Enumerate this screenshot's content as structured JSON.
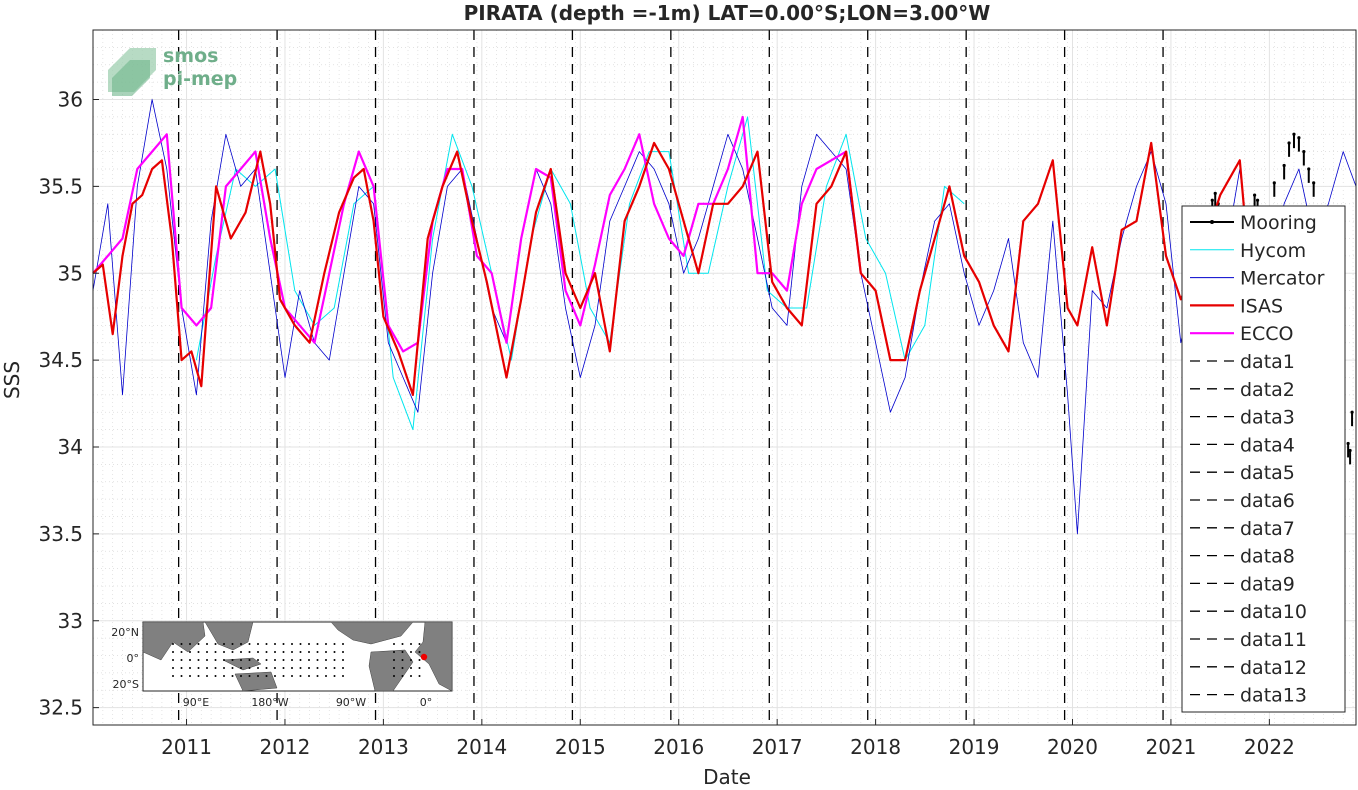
{
  "chart_data": {
    "type": "line",
    "title": "PIRATA (depth =-1m) LAT=0.00°S;LON=3.00°W",
    "xlabel": "Date",
    "ylabel": "SSS",
    "xlim": [
      2010.05,
      2022.88
    ],
    "ylim": [
      32.4,
      36.4
    ],
    "xticks": [
      2011,
      2012,
      2013,
      2014,
      2015,
      2016,
      2017,
      2018,
      2019,
      2020,
      2021,
      2022
    ],
    "xtick_labels": [
      "2011",
      "2012",
      "2013",
      "2014",
      "2015",
      "2016",
      "2017",
      "2018",
      "2019",
      "2020",
      "2021",
      "2022"
    ],
    "yticks": [
      32.5,
      33,
      33.5,
      34,
      34.5,
      35,
      35.5,
      36
    ],
    "ytick_labels": [
      "32.5",
      "33",
      "33.5",
      "34",
      "34.5",
      "35",
      "35.5",
      "36"
    ],
    "grid": true,
    "legend_position": "right",
    "vertical_lines": [
      2010.92,
      2011.92,
      2012.92,
      2013.92,
      2014.92,
      2015.92,
      2016.92,
      2017.92,
      2018.92,
      2019.92,
      2020.92
    ],
    "series": [
      {
        "name": "Mooring",
        "color": "#000000",
        "style": "solid-dots",
        "x": [
          2021.42,
          2021.45,
          2021.48,
          2021.85,
          2021.88,
          2022.05,
          2022.1,
          2022.15,
          2022.2,
          2022.25,
          2022.3,
          2022.35,
          2022.4,
          2022.45,
          2022.8,
          2022.82,
          2022.84
        ],
        "y": [
          35.42,
          35.46,
          35.4,
          35.45,
          35.42,
          35.52,
          35.35,
          35.62,
          35.75,
          35.8,
          35.78,
          35.7,
          35.6,
          35.52,
          34.02,
          33.98,
          34.2
        ]
      },
      {
        "name": "Hycom",
        "color": "#00e5ee",
        "style": "solid",
        "x": [
          2011.1,
          2011.3,
          2011.5,
          2011.7,
          2011.9,
          2012.1,
          2012.3,
          2012.5,
          2012.7,
          2012.9,
          2013.1,
          2013.3,
          2013.5,
          2013.7,
          2013.9,
          2014.1,
          2014.3,
          2014.5,
          2014.7,
          2014.9,
          2015.1,
          2015.3,
          2015.5,
          2015.7,
          2015.9,
          2016.1,
          2016.3,
          2016.5,
          2016.7,
          2016.9,
          2017.1,
          2017.3,
          2017.5,
          2017.7,
          2017.9,
          2018.1,
          2018.3,
          2018.5,
          2018.7,
          2018.9
        ],
        "y": [
          34.5,
          35.1,
          35.6,
          35.5,
          35.6,
          34.9,
          34.7,
          34.8,
          35.4,
          35.5,
          34.4,
          34.1,
          35.2,
          35.8,
          35.5,
          35.0,
          34.5,
          35.2,
          35.6,
          35.4,
          34.8,
          34.6,
          35.4,
          35.7,
          35.7,
          35.0,
          35.0,
          35.5,
          35.9,
          34.9,
          34.8,
          34.8,
          35.5,
          35.8,
          35.2,
          35.0,
          34.5,
          34.7,
          35.5,
          35.4
        ]
      },
      {
        "name": "Mercator",
        "color": "#0000cc",
        "style": "solid",
        "x": [
          2010.05,
          2010.2,
          2010.35,
          2010.5,
          2010.65,
          2010.8,
          2010.95,
          2011.1,
          2011.25,
          2011.4,
          2011.55,
          2011.7,
          2011.85,
          2012.0,
          2012.15,
          2012.3,
          2012.45,
          2012.6,
          2012.75,
          2012.9,
          2013.05,
          2013.2,
          2013.35,
          2013.5,
          2013.65,
          2013.8,
          2013.95,
          2014.1,
          2014.25,
          2014.4,
          2014.55,
          2014.7,
          2014.85,
          2015.0,
          2015.15,
          2015.3,
          2015.45,
          2015.6,
          2015.75,
          2015.9,
          2016.05,
          2016.2,
          2016.35,
          2016.5,
          2016.65,
          2016.8,
          2016.95,
          2017.1,
          2017.25,
          2017.4,
          2017.55,
          2017.7,
          2017.85,
          2018.0,
          2018.15,
          2018.3,
          2018.45,
          2018.6,
          2018.75,
          2018.9,
          2019.05,
          2019.2,
          2019.35,
          2019.5,
          2019.65,
          2019.8,
          2019.95,
          2020.05,
          2020.2,
          2020.35,
          2020.5,
          2020.65,
          2020.8,
          2020.95,
          2021.1,
          2021.25,
          2021.4,
          2021.55,
          2021.7,
          2021.85,
          2022.0,
          2022.15,
          2022.3,
          2022.45,
          2022.6,
          2022.75,
          2022.88
        ],
        "y": [
          34.9,
          35.4,
          34.3,
          35.5,
          36.0,
          35.6,
          34.8,
          34.3,
          35.3,
          35.8,
          35.5,
          35.6,
          35.0,
          34.4,
          34.9,
          34.6,
          34.5,
          35.0,
          35.5,
          35.4,
          34.6,
          34.4,
          34.2,
          35.0,
          35.5,
          35.6,
          35.2,
          34.8,
          34.6,
          35.2,
          35.6,
          35.4,
          34.8,
          34.4,
          34.7,
          35.3,
          35.5,
          35.7,
          35.6,
          35.4,
          35.0,
          35.2,
          35.5,
          35.8,
          35.6,
          35.2,
          34.8,
          34.7,
          35.5,
          35.8,
          35.7,
          35.6,
          35.0,
          34.6,
          34.2,
          34.4,
          34.9,
          35.3,
          35.4,
          35.0,
          34.7,
          34.9,
          35.2,
          34.6,
          34.4,
          35.3,
          34.3,
          33.5,
          34.9,
          34.8,
          35.2,
          35.5,
          35.7,
          35.4,
          34.6,
          35.0,
          35.3,
          35.1,
          35.6,
          34.8,
          35.0,
          35.4,
          35.6,
          35.2,
          35.4,
          35.7,
          35.5
        ]
      },
      {
        "name": "ISAS",
        "color": "#e60000",
        "style": "solid",
        "x": [
          2010.05,
          2010.15,
          2010.25,
          2010.35,
          2010.45,
          2010.55,
          2010.65,
          2010.75,
          2010.85,
          2010.95,
          2011.05,
          2011.15,
          2011.3,
          2011.45,
          2011.6,
          2011.75,
          2011.85,
          2011.95,
          2012.1,
          2012.25,
          2012.4,
          2012.55,
          2012.7,
          2012.8,
          2012.9,
          2013.0,
          2013.15,
          2013.3,
          2013.45,
          2013.6,
          2013.75,
          2013.9,
          2014.05,
          2014.25,
          2014.4,
          2014.55,
          2014.7,
          2014.85,
          2015.0,
          2015.15,
          2015.3,
          2015.45,
          2015.6,
          2015.75,
          2015.9,
          2016.05,
          2016.2,
          2016.35,
          2016.5,
          2016.65,
          2016.8,
          2016.95,
          2017.1,
          2017.25,
          2017.4,
          2017.55,
          2017.7,
          2017.85,
          2018.0,
          2018.15,
          2018.3,
          2018.45,
          2018.6,
          2018.75,
          2018.9,
          2019.05,
          2019.2,
          2019.35,
          2019.5,
          2019.65,
          2019.8,
          2019.95,
          2020.05,
          2020.2,
          2020.35,
          2020.5,
          2020.65,
          2020.8,
          2020.95,
          2021.1,
          2021.3,
          2021.5,
          2021.7,
          2021.8,
          2021.9
        ],
        "y": [
          35.0,
          35.05,
          34.65,
          35.1,
          35.4,
          35.45,
          35.6,
          35.65,
          35.2,
          34.5,
          34.55,
          34.35,
          35.5,
          35.2,
          35.35,
          35.7,
          35.4,
          34.85,
          34.7,
          34.6,
          35.0,
          35.35,
          35.55,
          35.6,
          35.3,
          34.75,
          34.55,
          34.3,
          35.2,
          35.5,
          35.7,
          35.3,
          34.95,
          34.4,
          34.85,
          35.35,
          35.6,
          35.0,
          34.8,
          35.0,
          34.55,
          35.3,
          35.5,
          35.75,
          35.6,
          35.3,
          35.0,
          35.4,
          35.4,
          35.5,
          35.7,
          34.95,
          34.8,
          34.7,
          35.4,
          35.5,
          35.7,
          35.0,
          34.9,
          34.5,
          34.5,
          34.9,
          35.2,
          35.5,
          35.1,
          34.95,
          34.7,
          34.55,
          35.3,
          35.4,
          35.65,
          34.8,
          34.7,
          35.15,
          34.7,
          35.25,
          35.3,
          35.75,
          35.1,
          34.85,
          35.1,
          35.45,
          35.65,
          35.0,
          34.9
        ]
      },
      {
        "name": "ECCO",
        "color": "#ff00ff",
        "style": "solid",
        "x": [
          2010.05,
          2010.2,
          2010.35,
          2010.5,
          2010.65,
          2010.8,
          2010.95,
          2011.1,
          2011.25,
          2011.4,
          2011.55,
          2011.7,
          2011.85,
          2012.0,
          2012.15,
          2012.3,
          2012.45,
          2012.6,
          2012.75,
          2012.9,
          2013.05,
          2013.2,
          2013.35,
          2013.5,
          2013.65,
          2013.8,
          2013.95,
          2014.1,
          2014.25,
          2014.4,
          2014.55,
          2014.7,
          2014.85,
          2015.0,
          2015.15,
          2015.3,
          2015.45,
          2015.6,
          2015.75,
          2015.9,
          2016.05,
          2016.2,
          2016.35,
          2016.5,
          2016.65,
          2016.8,
          2016.95,
          2017.1,
          2017.25,
          2017.4,
          2017.55,
          2017.7,
          2017.85
        ],
        "y": [
          35.0,
          35.1,
          35.2,
          35.6,
          35.7,
          35.8,
          34.8,
          34.7,
          34.8,
          35.5,
          35.6,
          35.7,
          35.2,
          34.8,
          34.7,
          34.6,
          35.0,
          35.4,
          35.7,
          35.5,
          34.7,
          34.55,
          34.6,
          35.3,
          35.6,
          35.6,
          35.1,
          35.0,
          34.6,
          35.2,
          35.6,
          35.55,
          34.9,
          34.7,
          35.05,
          35.45,
          35.6,
          35.8,
          35.4,
          35.2,
          35.1,
          35.4,
          35.4,
          35.6,
          35.9,
          35.0,
          35.0,
          34.9,
          35.4,
          35.6,
          35.65,
          35.7,
          35.0
        ]
      }
    ],
    "legend_entries": [
      "Mooring",
      "Hycom",
      "Mercator",
      "ISAS",
      "ECCO",
      "data1",
      "data2",
      "data3",
      "data4",
      "data5",
      "data6",
      "data7",
      "data8",
      "data9",
      "data10",
      "data11",
      "data12",
      "data13"
    ]
  },
  "logo": {
    "line1": "smos",
    "line2": "pi-mep"
  },
  "inset_map": {
    "lat_labels": [
      "20°N",
      "0°",
      "20°S"
    ],
    "lon_labels": [
      "90°E",
      "180°W",
      "90°W",
      "0°"
    ],
    "marker_color": "#ee0000"
  }
}
